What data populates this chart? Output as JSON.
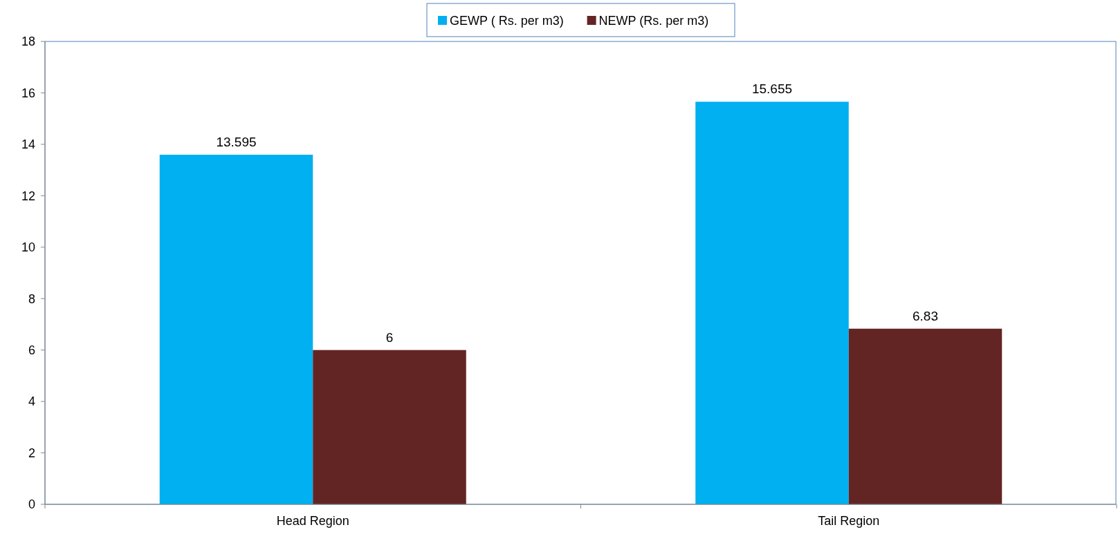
{
  "chart_data": {
    "type": "bar",
    "categories": [
      "Head Region",
      "Tail Region"
    ],
    "series": [
      {
        "name": "GEWP ( Rs. per m3)",
        "color": "#00b0f0",
        "values": [
          13.595,
          15.655
        ]
      },
      {
        "name": "NEWP (Rs. per m3)",
        "color": "#632523",
        "values": [
          6,
          6.83
        ]
      }
    ],
    "ylim": [
      0,
      18
    ],
    "yticks": [
      0,
      2,
      4,
      6,
      8,
      10,
      12,
      14,
      16,
      18
    ],
    "data_labels": true,
    "legend": "top",
    "grid": false
  }
}
